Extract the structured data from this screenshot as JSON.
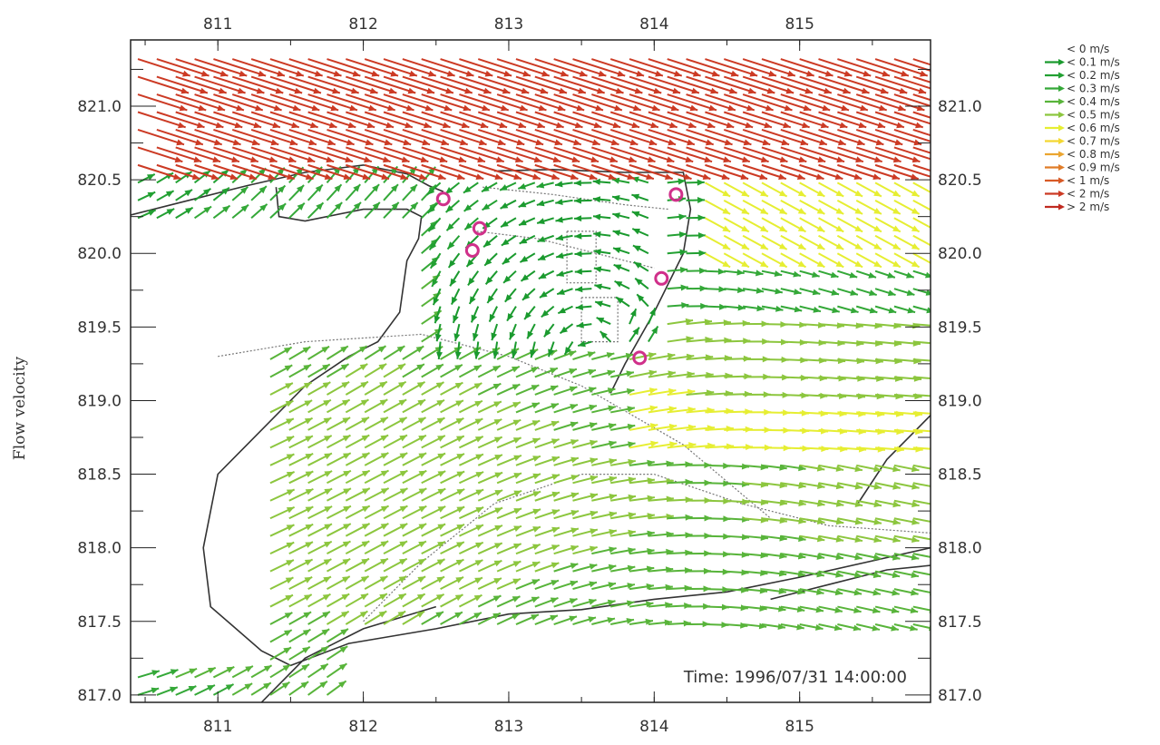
{
  "chart_data": {
    "type": "scatter",
    "subtype": "vector-field",
    "ylabel": "Flow velocity",
    "xlabel": "",
    "time_annotation": "Time: 1996/07/31 14:00:00",
    "xlim": [
      810.4,
      815.9
    ],
    "ylim": [
      816.95,
      821.45
    ],
    "x_ticks": [
      811,
      812,
      813,
      814,
      815
    ],
    "x_tick_labels": [
      "811",
      "812",
      "813",
      "814",
      "815"
    ],
    "y_ticks": [
      817.0,
      817.5,
      818.0,
      818.5,
      819.0,
      819.5,
      820.0,
      820.5,
      821.0
    ],
    "y_tick_labels": [
      "817.0",
      "817.5",
      "818.0",
      "818.5",
      "819.0",
      "819.5",
      "820.0",
      "820.5",
      "821.0"
    ],
    "legend_position": "top-right, outside plot",
    "legend": [
      {
        "label": "< 0 m/s",
        "color": "#1a9a2e"
      },
      {
        "label": "< 0.1 m/s",
        "color": "#1a9a2e"
      },
      {
        "label": "< 0.2 m/s",
        "color": "#22a032"
      },
      {
        "label": "< 0.3 m/s",
        "color": "#34a838"
      },
      {
        "label": "< 0.4 m/s",
        "color": "#58b43a"
      },
      {
        "label": "< 0.5 m/s",
        "color": "#8cc63e"
      },
      {
        "label": "< 0.6 m/s",
        "color": "#e6ee32"
      },
      {
        "label": "< 0.7 m/s",
        "color": "#f4d832"
      },
      {
        "label": "< 0.8 m/s",
        "color": "#eba530"
      },
      {
        "label": "< 0.9 m/s",
        "color": "#e07c28"
      },
      {
        "label": "< 1 m/s",
        "color": "#d85a26"
      },
      {
        "label": "< 2 m/s",
        "color": "#cc3a24"
      },
      {
        "label": "> 2 m/s",
        "color": "#c02a20"
      }
    ],
    "markers": [
      {
        "x": 812.55,
        "y": 820.37
      },
      {
        "x": 812.8,
        "y": 820.17
      },
      {
        "x": 812.75,
        "y": 820.02
      },
      {
        "x": 814.15,
        "y": 820.4
      },
      {
        "x": 814.05,
        "y": 819.83
      },
      {
        "x": 813.9,
        "y": 819.29
      }
    ],
    "coastline": [
      [
        [
          810.4,
          820.26
        ],
        [
          810.8,
          820.36
        ],
        [
          811.2,
          820.46
        ],
        [
          811.6,
          820.55
        ],
        [
          812.0,
          820.6
        ],
        [
          812.3,
          820.54
        ],
        [
          812.45,
          820.46
        ],
        [
          812.55,
          820.42
        ]
      ],
      [
        [
          811.4,
          820.45
        ],
        [
          811.42,
          820.25
        ],
        [
          811.6,
          820.22
        ],
        [
          812.0,
          820.3
        ],
        [
          812.3,
          820.3
        ],
        [
          812.4,
          820.25
        ],
        [
          812.38,
          820.1
        ],
        [
          812.3,
          819.95
        ],
        [
          812.25,
          819.6
        ],
        [
          812.1,
          819.4
        ],
        [
          811.9,
          819.3
        ],
        [
          811.6,
          819.1
        ],
        [
          811.3,
          818.8
        ],
        [
          811.0,
          818.5
        ],
        [
          810.9,
          818.0
        ],
        [
          810.95,
          817.6
        ],
        [
          811.3,
          817.3
        ],
        [
          811.5,
          817.2
        ],
        [
          811.9,
          817.35
        ],
        [
          812.5,
          817.45
        ],
        [
          813.0,
          817.55
        ],
        [
          813.5,
          817.58
        ],
        [
          814.0,
          817.65
        ],
        [
          814.5,
          817.7
        ],
        [
          815.0,
          817.8
        ],
        [
          815.9,
          818.0
        ]
      ],
      [
        [
          812.9,
          820.56
        ],
        [
          813.3,
          820.57
        ],
        [
          813.8,
          820.55
        ],
        [
          814.2,
          820.55
        ],
        [
          814.25,
          820.3
        ],
        [
          814.2,
          820.0
        ],
        [
          814.0,
          819.6
        ],
        [
          813.8,
          819.25
        ],
        [
          813.7,
          819.05
        ]
      ],
      [
        [
          811.3,
          816.95
        ],
        [
          811.6,
          817.25
        ],
        [
          812.0,
          817.45
        ],
        [
          812.5,
          817.6
        ]
      ],
      [
        [
          814.8,
          817.65
        ],
        [
          815.2,
          817.75
        ],
        [
          815.6,
          817.85
        ],
        [
          815.9,
          817.88
        ]
      ],
      [
        [
          815.4,
          818.3
        ],
        [
          815.6,
          818.6
        ],
        [
          815.8,
          818.8
        ],
        [
          815.9,
          818.9
        ]
      ]
    ],
    "inner_lines": [
      [
        [
          812.78,
          820.15
        ],
        [
          813.2,
          820.1
        ],
        [
          813.6,
          820.0
        ],
        [
          814.0,
          819.9
        ]
      ],
      [
        [
          812.82,
          820.45
        ],
        [
          813.3,
          820.4
        ],
        [
          813.8,
          820.33
        ],
        [
          814.1,
          820.3
        ]
      ],
      [
        [
          813.4,
          820.15
        ],
        [
          813.6,
          820.15
        ],
        [
          813.6,
          819.8
        ],
        [
          813.4,
          819.8
        ],
        [
          813.4,
          820.15
        ]
      ],
      [
        [
          813.5,
          819.7
        ],
        [
          813.75,
          819.7
        ],
        [
          813.75,
          819.4
        ],
        [
          813.5,
          819.4
        ],
        [
          813.5,
          819.7
        ]
      ],
      [
        [
          811.0,
          819.3
        ],
        [
          811.6,
          819.4
        ],
        [
          812.4,
          819.45
        ],
        [
          813.0,
          819.3
        ],
        [
          813.5,
          819.1
        ],
        [
          814.2,
          818.7
        ],
        [
          814.8,
          818.2
        ]
      ],
      [
        [
          812.0,
          817.5
        ],
        [
          812.4,
          817.9
        ],
        [
          812.9,
          818.3
        ],
        [
          813.5,
          818.5
        ],
        [
          814.0,
          818.5
        ],
        [
          814.6,
          818.3
        ],
        [
          815.2,
          818.15
        ],
        [
          815.9,
          818.1
        ]
      ]
    ]
  }
}
